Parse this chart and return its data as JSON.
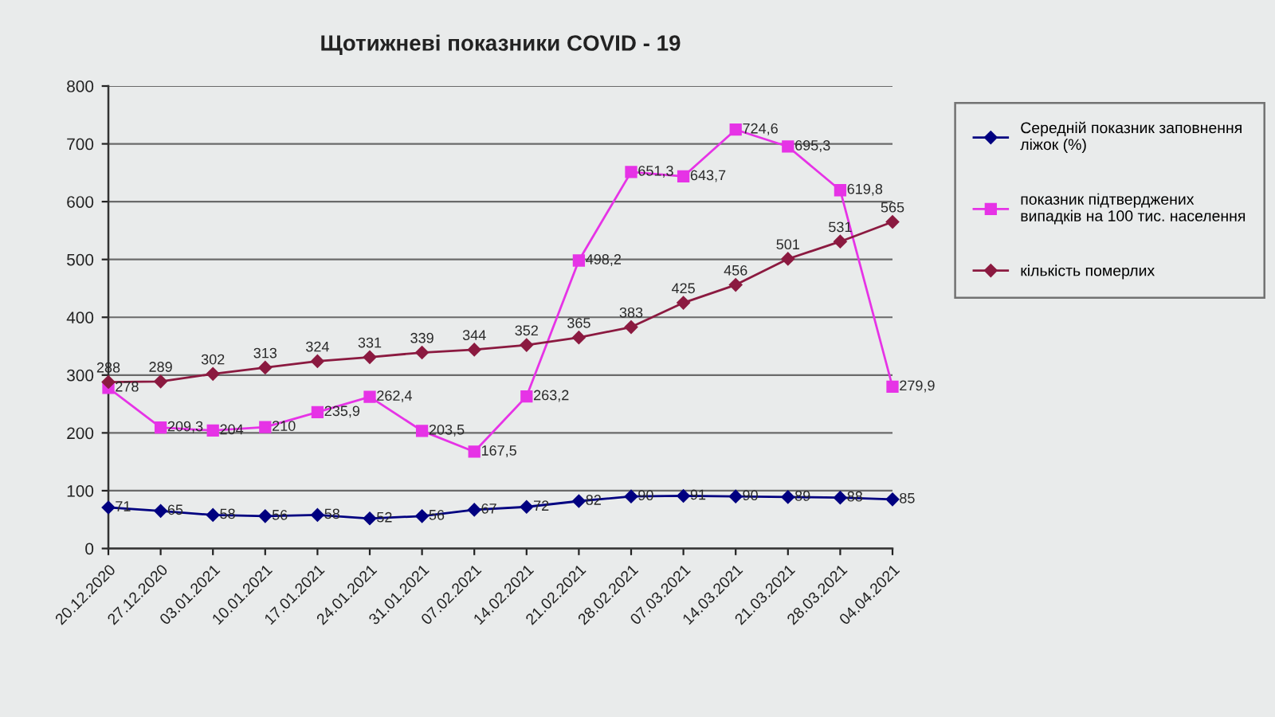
{
  "chart_data": {
    "type": "line",
    "title": "Щотижневі показники COVID - 19",
    "categories": [
      "20.12.2020",
      "27.12.2020",
      "03.01.2021",
      "10.01.2021",
      "17.01.2021",
      "24.01.2021",
      "31.01.2021",
      "07.02.2021",
      "14.02.2021",
      "21.02.2021",
      "28.02.2021",
      "07.03.2021",
      "14.03.2021",
      "21.03.2021",
      "28.03.2021",
      "04.04.2021"
    ],
    "series": [
      {
        "name": "Середній показник заповнення ліжок (%)",
        "color": "#000080",
        "marker": "diamond",
        "values": [
          71,
          65,
          58,
          56,
          58,
          52,
          56,
          67,
          72,
          82,
          90,
          91,
          90,
          89,
          88,
          85
        ],
        "value_labels": [
          "71",
          "65",
          "58",
          "56",
          "58",
          "52",
          "56",
          "67",
          "72",
          "82",
          "90",
          "91",
          "90",
          "89",
          "88",
          "85"
        ]
      },
      {
        "name": "показник підтверджених випадків на 100 тис. населення",
        "color": "#e633e6",
        "marker": "square",
        "values": [
          278,
          209.3,
          204,
          210,
          235.9,
          262.4,
          203.5,
          167.5,
          263.2,
          498.2,
          651.3,
          643.7,
          724.6,
          695.3,
          619.8,
          279.9
        ],
        "value_labels": [
          "278",
          "209,3",
          "204",
          "210",
          "235,9",
          "262,4",
          "203,5",
          "167,5",
          "263,2",
          "498,2",
          "651,3",
          "643,7",
          "724,6",
          "695,3",
          "619,8",
          "279,9"
        ]
      },
      {
        "name": "кількість померлих",
        "color": "#8b1a40",
        "marker": "diamond",
        "values": [
          288,
          289,
          302,
          313,
          324,
          331,
          339,
          344,
          352,
          365,
          383,
          425,
          456,
          501,
          531,
          565
        ],
        "value_labels": [
          "288",
          "289",
          "302",
          "313",
          "324",
          "331",
          "339",
          "344",
          "352",
          "365",
          "383",
          "425",
          "456",
          "501",
          "531",
          "565"
        ]
      }
    ],
    "ylim": [
      0,
      800
    ],
    "yticks": [
      0,
      100,
      200,
      300,
      400,
      500,
      600,
      700,
      800
    ],
    "grid": "y",
    "legend": "right",
    "line_style": "solid"
  }
}
